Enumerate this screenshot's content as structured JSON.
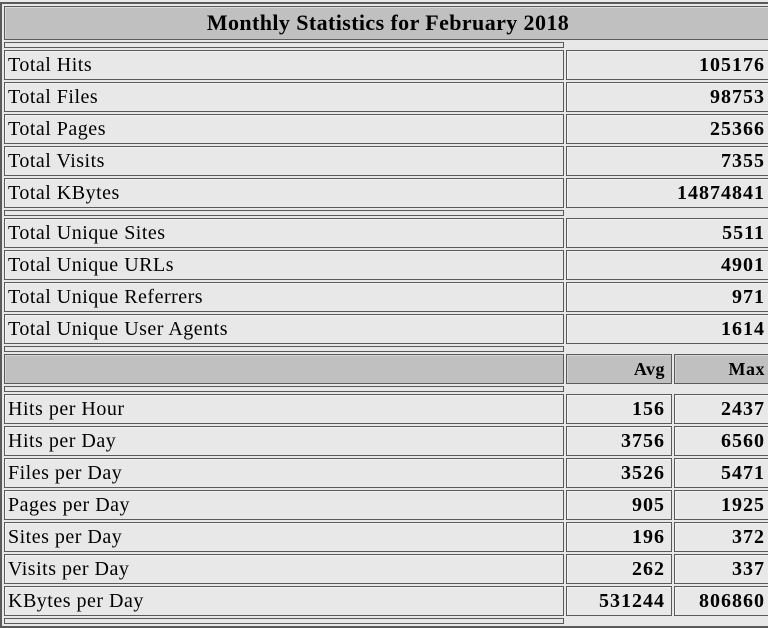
{
  "title": "Monthly Statistics for February 2018",
  "colors": {
    "page_bg": "#E8E8E8",
    "header_bg": "#C0C0C0",
    "border": "#5A5A5A",
    "text": "#000000"
  },
  "chart_data": {
    "type": "table",
    "title": "Monthly Statistics for February 2018",
    "summary_rows": [
      {
        "label": "Total Hits",
        "value": "105176"
      },
      {
        "label": "Total Files",
        "value": "98753"
      },
      {
        "label": "Total Pages",
        "value": "25366"
      },
      {
        "label": "Total Visits",
        "value": "7355"
      },
      {
        "label": "Total KBytes",
        "value": "14874841"
      }
    ],
    "unique_rows": [
      {
        "label": "Total Unique Sites",
        "value": "5511"
      },
      {
        "label": "Total Unique URLs",
        "value": "4901"
      },
      {
        "label": "Total Unique Referrers",
        "value": "971"
      },
      {
        "label": "Total Unique User Agents",
        "value": "1614"
      }
    ],
    "avg_max_header": {
      "label": "",
      "avg": "Avg",
      "max": "Max"
    },
    "avg_max_rows": [
      {
        "label": "Hits per Hour",
        "avg": "156",
        "max": "2437"
      },
      {
        "label": "Hits per Day",
        "avg": "3756",
        "max": "6560"
      },
      {
        "label": "Files per Day",
        "avg": "3526",
        "max": "5471"
      },
      {
        "label": "Pages per Day",
        "avg": "905",
        "max": "1925"
      },
      {
        "label": "Sites per Day",
        "avg": "196",
        "max": "372"
      },
      {
        "label": "Visits per Day",
        "avg": "262",
        "max": "337"
      },
      {
        "label": "KBytes per Day",
        "avg": "531244",
        "max": "806860"
      }
    ]
  }
}
